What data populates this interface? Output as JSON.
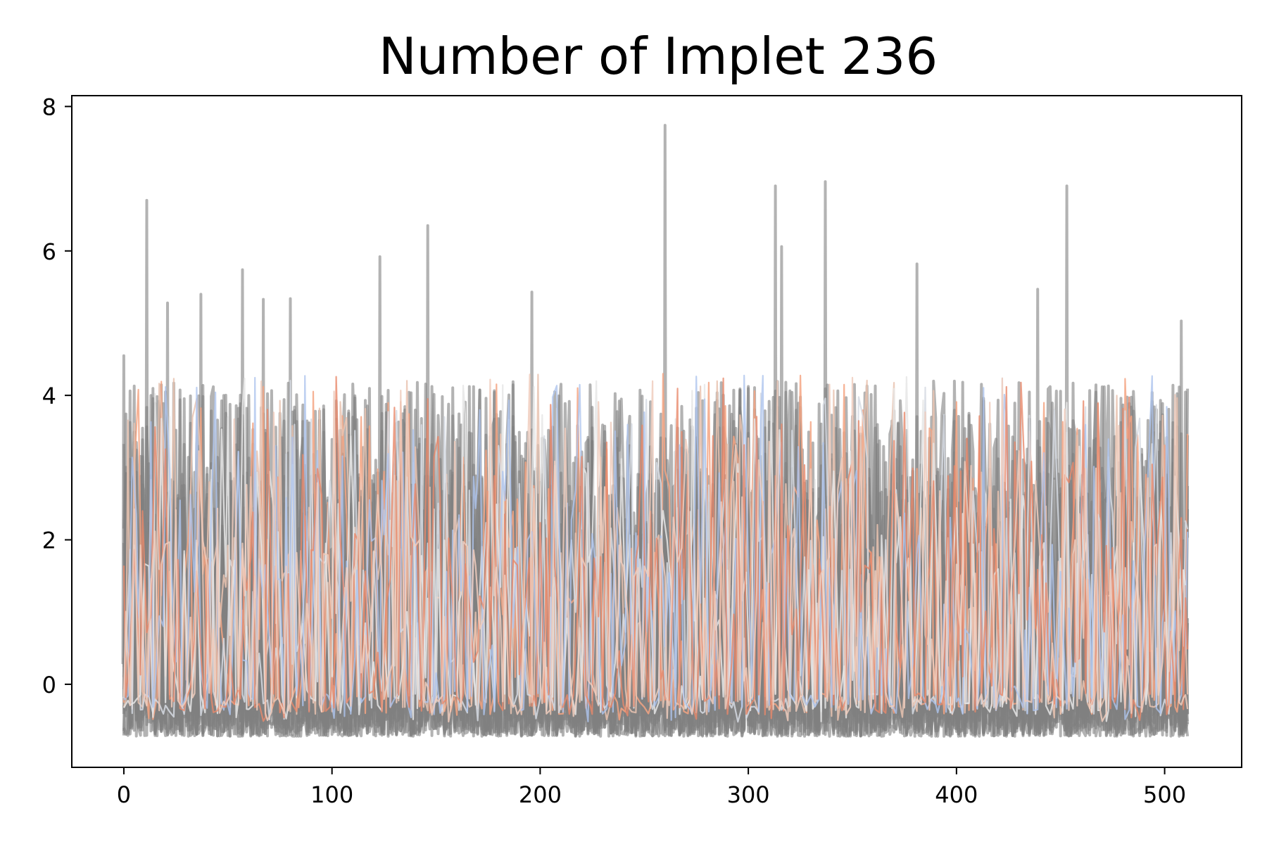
{
  "chart_data": {
    "type": "line",
    "title": "Number of Implet 236",
    "xlabel": "",
    "ylabel": "",
    "xlim": [
      -25,
      537
    ],
    "ylim": [
      -1.15,
      8.15
    ],
    "x_ticks": [
      0,
      100,
      200,
      300,
      400,
      500
    ],
    "y_ticks": [
      0,
      2,
      4,
      6,
      8
    ],
    "x_tick_labels": [
      "0",
      "100",
      "200",
      "300",
      "400",
      "500"
    ],
    "y_tick_labels": [
      "0",
      "2",
      "4",
      "6",
      "8"
    ],
    "grid": false,
    "legend": "none",
    "x_range": [
      0,
      511
    ],
    "baseline": -0.72,
    "background_series": {
      "count": 14,
      "color": "#808080",
      "opacity": 0.6,
      "typical_max": 4.2
    },
    "highlight_series": [
      {
        "color": "#f4a582",
        "opacity": 0.85
      },
      {
        "color": "#e9c3b0",
        "opacity": 0.85
      },
      {
        "color": "#d6dbe3",
        "opacity": 0.85
      },
      {
        "color": "#e6e6e6",
        "opacity": 0.85
      },
      {
        "color": "#aec4ee",
        "opacity": 0.8
      },
      {
        "color": "#e8886a",
        "opacity": 0.8
      },
      {
        "color": "#f0cdbd",
        "opacity": 0.85
      }
    ],
    "peaks": [
      {
        "x": 0,
        "y": 4.55
      },
      {
        "x": 11,
        "y": 6.7
      },
      {
        "x": 21,
        "y": 5.28
      },
      {
        "x": 37,
        "y": 5.4
      },
      {
        "x": 57,
        "y": 5.74
      },
      {
        "x": 67,
        "y": 5.33
      },
      {
        "x": 80,
        "y": 5.34
      },
      {
        "x": 123,
        "y": 5.92
      },
      {
        "x": 146,
        "y": 6.35
      },
      {
        "x": 196,
        "y": 5.43
      },
      {
        "x": 260,
        "y": 7.74
      },
      {
        "x": 313,
        "y": 6.9
      },
      {
        "x": 316,
        "y": 6.06
      },
      {
        "x": 337,
        "y": 6.96
      },
      {
        "x": 381,
        "y": 5.82
      },
      {
        "x": 439,
        "y": 5.47
      },
      {
        "x": 453,
        "y": 6.9
      },
      {
        "x": 508,
        "y": 5.03
      }
    ]
  }
}
